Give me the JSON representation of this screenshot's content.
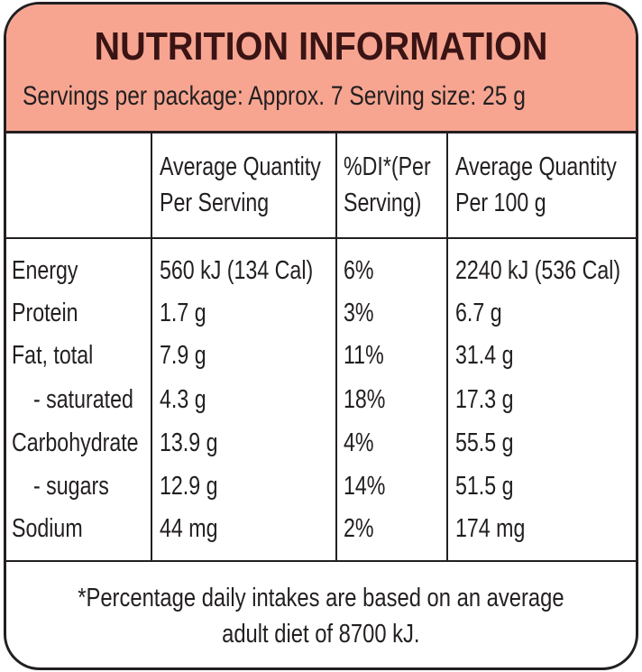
{
  "header": {
    "title": "NUTRITION INFORMATION",
    "servings_line": "Servings per package: Approx. 7  Serving size: 25 g"
  },
  "columns": [
    "Average Quantity Per Serving",
    "%DI*(Per Serving)",
    "Average Quantity Per 100 g"
  ],
  "column_lines": [
    [
      "Average Quantity",
      "Per Serving"
    ],
    [
      "%DI*(Per",
      "Serving)"
    ],
    [
      "Average Quantity",
      "Per 100 g"
    ]
  ],
  "rows": [
    {
      "label": "Energy",
      "per_serving": "560 kJ (134 Cal)",
      "di": "6%",
      "per_100g": "2240 kJ (536 Cal)"
    },
    {
      "label": "Protein",
      "per_serving": "1.7 g",
      "di": "3%",
      "per_100g": "6.7 g"
    },
    {
      "label": "Fat, total",
      "per_serving": "7.9 g",
      "di": "11%",
      "per_100g": "31.4 g"
    },
    {
      "label": "- saturated",
      "per_serving": "4.3 g",
      "di": "18%",
      "per_100g": "17.3 g"
    },
    {
      "label": "Carbohydrate",
      "per_serving": "13.9 g",
      "di": "4%",
      "per_100g": "55.5 g"
    },
    {
      "label": "- sugars",
      "per_serving": "12.9 g",
      "di": "14%",
      "per_100g": "51.5 g"
    },
    {
      "label": "Sodium",
      "per_serving": "44 mg",
      "di": "2%",
      "per_100g": "174 mg"
    }
  ],
  "footnote": {
    "line1": "*Percentage daily intakes are based on an average",
    "line2": "adult diet of 8700 kJ."
  },
  "colors": {
    "header_background": "#f7a591",
    "title_text": "#3a1414",
    "border": "#231f20"
  }
}
